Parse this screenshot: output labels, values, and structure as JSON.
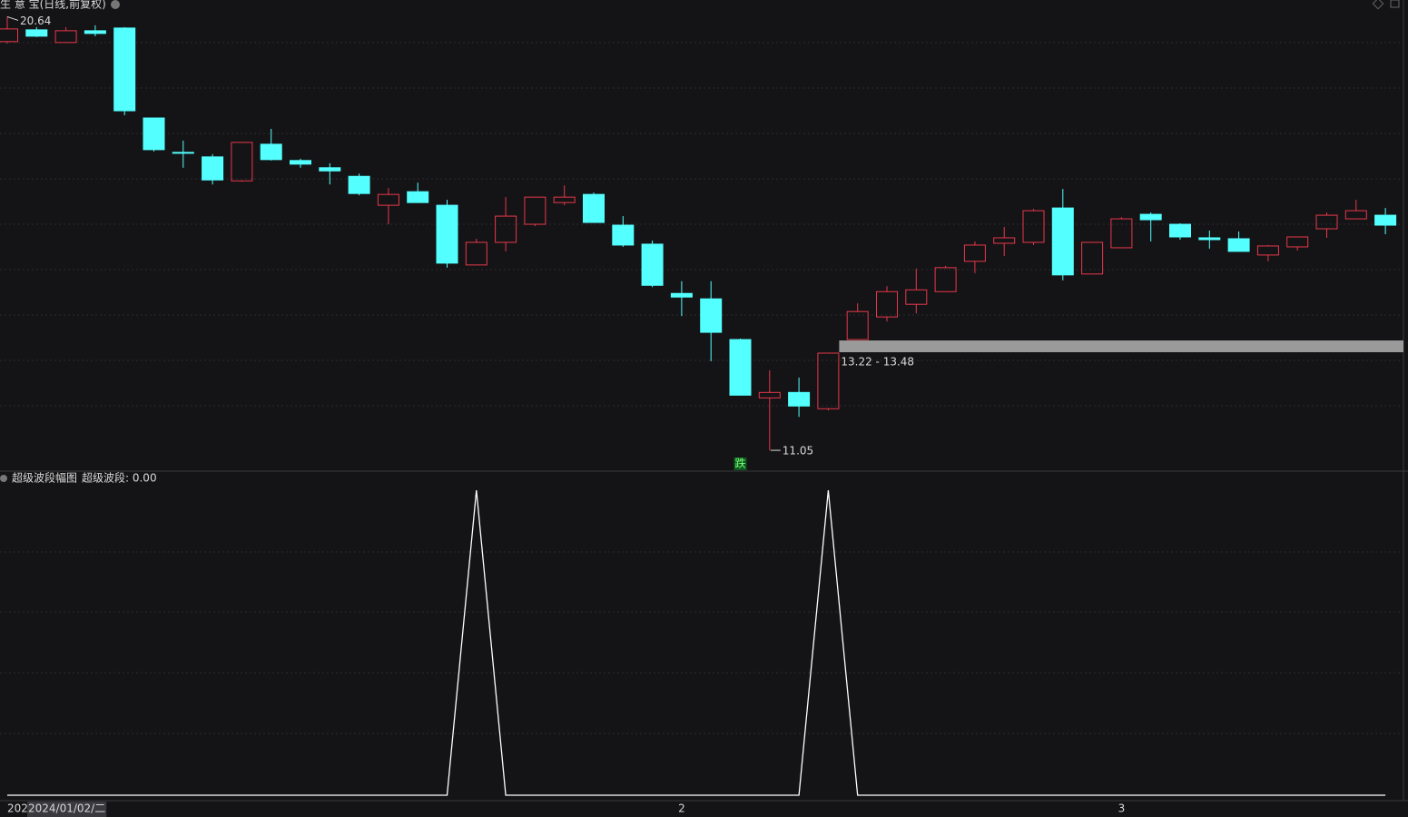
{
  "chart_data": [
    {
      "type": "candlestick",
      "title": "生 意 宝(日线,前复权)",
      "categories": [
        "202",
        "2024/01/02/二",
        null,
        null,
        null,
        null,
        null,
        null,
        null,
        null,
        null,
        null,
        null,
        null,
        null,
        null,
        null,
        null,
        null,
        null,
        null,
        null,
        null,
        "2",
        null,
        null,
        null,
        null,
        null,
        null,
        null,
        null,
        null,
        null,
        null,
        null,
        null,
        null,
        "3",
        null,
        null,
        null,
        null,
        null,
        null,
        null,
        null,
        null
      ],
      "open": [
        20.09,
        20.35,
        20.07,
        20.33,
        20.39,
        18.4,
        17.64,
        17.54,
        17.01,
        17.82,
        17.46,
        17.3,
        17.11,
        16.47,
        16.77,
        16.47,
        15.15,
        15.65,
        16.05,
        16.53,
        16.71,
        16.03,
        15.61,
        14.52,
        14.4,
        13.5,
        12.21,
        12.33,
        11.97,
        13.5,
        14.0,
        14.28,
        14.56,
        15.23,
        15.63,
        15.65,
        16.41,
        14.95,
        15.53,
        16.27,
        16.05,
        15.75,
        15.73,
        15.37,
        15.55,
        15.95,
        16.17,
        16.25
      ],
      "high": [
        20.64,
        20.41,
        20.41,
        20.45,
        20.41,
        18.4,
        17.9,
        17.6,
        17.86,
        18.16,
        17.5,
        17.4,
        17.17,
        16.85,
        16.97,
        16.59,
        15.73,
        16.65,
        16.65,
        16.91,
        16.75,
        16.23,
        15.69,
        14.79,
        14.79,
        13.52,
        12.82,
        12.66,
        13.2,
        14.3,
        14.68,
        15.07,
        15.13,
        15.67,
        15.99,
        16.39,
        16.83,
        15.65,
        16.21,
        16.31,
        16.07,
        15.91,
        15.89,
        15.59,
        15.77,
        16.31,
        16.59,
        16.41
      ],
      "low": [
        20.05,
        20.19,
        20.07,
        20.21,
        18.46,
        17.66,
        17.3,
        16.93,
        16.99,
        17.46,
        17.3,
        16.93,
        16.69,
        16.05,
        16.53,
        15.09,
        15.15,
        15.45,
        16.01,
        16.47,
        16.09,
        15.55,
        14.66,
        14.02,
        13.02,
        12.27,
        11.05,
        11.79,
        11.93,
        13.5,
        13.9,
        14.08,
        14.56,
        14.97,
        15.35,
        15.59,
        14.81,
        14.95,
        15.53,
        15.67,
        15.71,
        15.51,
        15.45,
        15.23,
        15.47,
        15.75,
        16.17,
        15.83
      ],
      "close": [
        20.37,
        20.21,
        20.33,
        20.27,
        18.56,
        17.7,
        17.62,
        17.03,
        17.86,
        17.48,
        17.38,
        17.23,
        16.73,
        16.71,
        16.53,
        15.19,
        15.65,
        16.23,
        16.65,
        16.65,
        16.09,
        15.59,
        14.7,
        14.44,
        13.66,
        12.27,
        12.33,
        12.03,
        13.2,
        14.12,
        14.56,
        14.6,
        15.09,
        15.59,
        15.75,
        16.35,
        14.93,
        15.65,
        16.17,
        16.15,
        15.77,
        15.71,
        15.45,
        15.57,
        15.77,
        16.25,
        16.35,
        16.03
      ],
      "up_color": "#e8374b",
      "down_color": "#54ffff",
      "ylim": [
        10.61,
        21.01
      ],
      "band": {
        "low": 13.22,
        "high": 13.48,
        "label": "13.22 - 13.48",
        "color": "#9a9a9a"
      },
      "signal": {
        "index": 25,
        "label": "跌"
      }
    },
    {
      "type": "line",
      "title": "超级波段幅图",
      "value_label": "超级波段: 0.00",
      "color": "#ffffff",
      "values": [
        0,
        0,
        0,
        0,
        0,
        0,
        0,
        0,
        0,
        0,
        0,
        0,
        0,
        0,
        0,
        0,
        1,
        0,
        0,
        0,
        0,
        0,
        0,
        0,
        0,
        0,
        0,
        0,
        1,
        0,
        0,
        0,
        0,
        0,
        0,
        0,
        0,
        0,
        0,
        0,
        0,
        0,
        0,
        0,
        0,
        0,
        0,
        0
      ],
      "ylim": [
        0,
        1
      ]
    }
  ]
}
